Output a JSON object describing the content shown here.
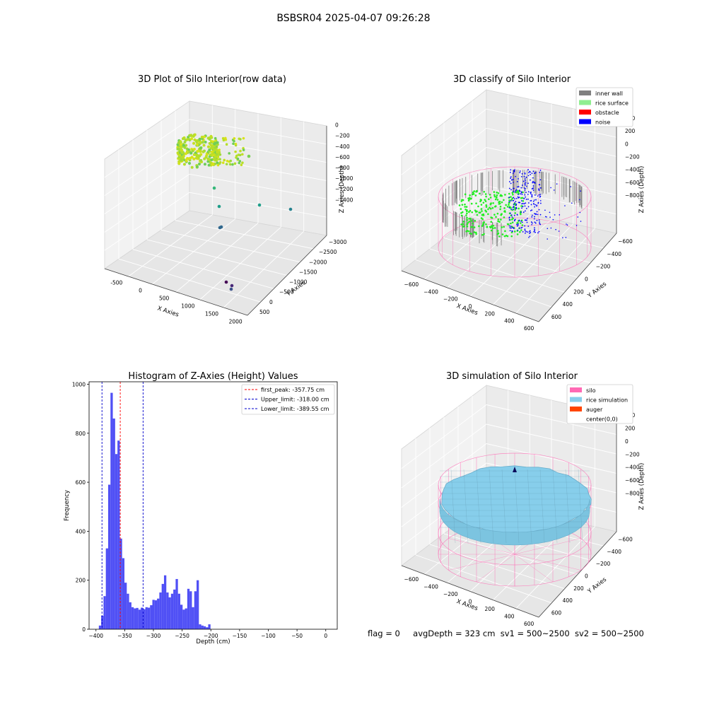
{
  "suptitle": "BSBSR04 2025-04-07 09:26:28",
  "footer": {
    "flag": "flag = 0",
    "avg_depth": "avgDepth = 323 cm",
    "sv1": "sv1 = 500~2500",
    "sv2": "sv2 = 500~2500"
  },
  "colors": {
    "inner_wall": "#808080",
    "rice_surface": "#90ee90",
    "obstacle": "#ff0000",
    "noise": "#0000ff",
    "silo": "#ff69b4",
    "rice_simulation": "#87ceeb",
    "auger": "#ff4500",
    "hist_bar": "#5050f5",
    "first_peak_line": "#ff0000",
    "limit_line": "#0000cc"
  },
  "chart_data": [
    {
      "type": "scatter3d",
      "title": "3D Plot of Silo Interior(row data)",
      "xlabel": "X Axies",
      "ylabel": "Y Axies",
      "zlabel": "Z Axies (Depth)",
      "x_ticks": [
        "-500",
        "0",
        "500",
        "1000",
        "1500",
        "2000"
      ],
      "y_ticks": [
        "500",
        "0",
        "−500",
        "−1000",
        "−1500",
        "−2000",
        "−2500",
        "−3000"
      ],
      "z_ticks": [
        "0",
        "−200",
        "−400",
        "−600",
        "−800",
        "−1000",
        "−1200",
        "−1400"
      ]
    },
    {
      "type": "scatter3d",
      "title": "3D classify of Silo Interior",
      "xlabel": "X Axies",
      "ylabel": "Y Axies",
      "zlabel": "Z Axies (Depth)",
      "legend_position": "top-right",
      "legend": [
        "inner wall",
        "rice surface",
        "obstacle",
        "noise"
      ],
      "x_ticks": [
        "−600",
        "−400",
        "−200",
        "0",
        "200",
        "400",
        "600"
      ],
      "y_ticks": [
        "600",
        "400",
        "200",
        "0",
        "−200",
        "−400",
        "−600"
      ],
      "z_ticks": [
        "400",
        "200",
        "0",
        "−200",
        "−400",
        "−600",
        "−800"
      ]
    },
    {
      "type": "bar",
      "title": "Histogram of Z-Axies (Height) Values",
      "xlabel": "Depth (cm)",
      "ylabel": "Frequency",
      "xlim": [
        -412,
        20
      ],
      "ylim": [
        0,
        1010
      ],
      "x_ticks": [
        -400,
        -350,
        -300,
        -250,
        -200,
        -150,
        -100,
        -50,
        0
      ],
      "x_tick_labels": [
        "−400",
        "−350",
        "−300",
        "−250",
        "−200",
        "−150",
        "−100",
        "−50",
        "0"
      ],
      "y_ticks": [
        0,
        200,
        400,
        600,
        800,
        1000
      ],
      "y_tick_labels": [
        "0",
        "200",
        "400",
        "600",
        "800",
        "1000"
      ],
      "bin_start": -395,
      "bin_width": 4.05,
      "values": [
        15,
        55,
        135,
        330,
        590,
        965,
        860,
        715,
        770,
        370,
        290,
        190,
        145,
        110,
        90,
        85,
        87,
        80,
        88,
        82,
        90,
        88,
        98,
        120,
        118,
        125,
        150,
        185,
        220,
        150,
        130,
        145,
        162,
        205,
        145,
        100,
        80,
        85,
        165,
        155,
        90,
        155,
        200,
        20,
        15,
        12,
        8,
        20
      ],
      "vlines": [
        {
          "x": -357.75,
          "label": "first_peak: -357.75 cm",
          "color": "#ff0000"
        },
        {
          "x": -318.0,
          "label": "Upper_limit: -318.00 cm",
          "color": "#0000cc"
        },
        {
          "x": -389.55,
          "label": "Lower_limit: -389.55 cm",
          "color": "#0000cc"
        }
      ],
      "legend_position": "top-right"
    },
    {
      "type": "surface3d",
      "title": "3D simulation of Silo Interior",
      "xlabel": "X Axies",
      "ylabel": "Y Axies",
      "zlabel": "Z Axies (Depth)",
      "legend_position": "top-right",
      "legend": [
        "silo",
        "rice simulation",
        "auger",
        "center(0,0)"
      ],
      "x_ticks": [
        "−600",
        "−400",
        "−200",
        "0",
        "200",
        "400",
        "600"
      ],
      "y_ticks": [
        "600",
        "400",
        "200",
        "0",
        "−200",
        "−400",
        "−600"
      ],
      "z_ticks": [
        "400",
        "200",
        "0",
        "−200",
        "−400",
        "−600",
        "−800"
      ]
    }
  ]
}
